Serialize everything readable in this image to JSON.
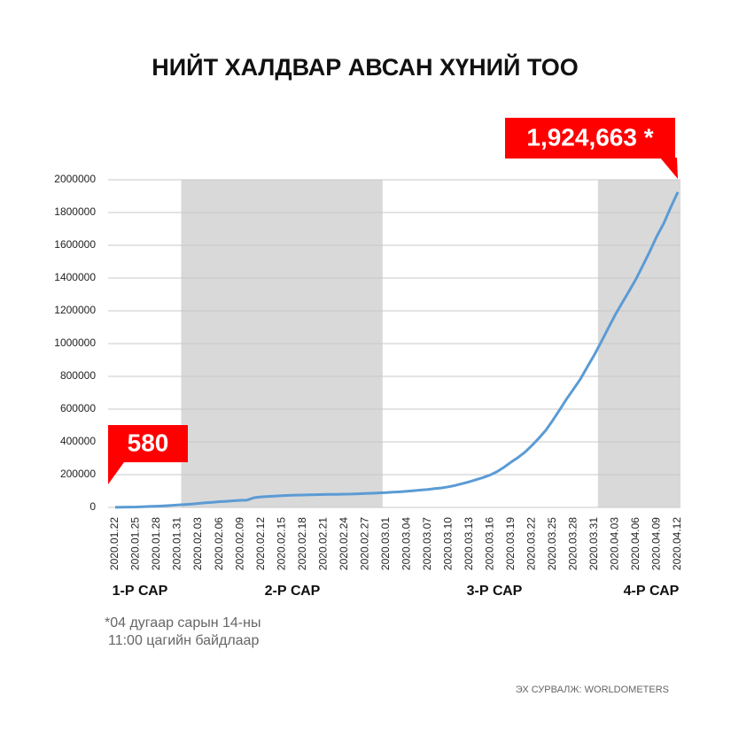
{
  "chart_data": {
    "type": "line",
    "title": "НИЙТ ХАЛДВАР АВСАН ХҮНИЙ ТОО",
    "categories": [
      "2020.01.22",
      null,
      null,
      "2020.01.25",
      null,
      null,
      "2020.01.28",
      null,
      null,
      "2020.01.31",
      null,
      null,
      "2020.02.03",
      null,
      null,
      "2020.02.06",
      null,
      null,
      "2020.02.09",
      null,
      null,
      "2020.02.12",
      null,
      null,
      "2020.02.15",
      null,
      null,
      "2020.02.18",
      null,
      null,
      "2020.02.21",
      null,
      null,
      "2020.02.24",
      null,
      null,
      "2020.02.27",
      null,
      null,
      "2020.03.01",
      null,
      null,
      "2020.03.04",
      null,
      null,
      "2020.03.07",
      null,
      null,
      "2020.03.10",
      null,
      null,
      "2020.03.13",
      null,
      null,
      "2020.03.16",
      null,
      null,
      "2020.03.19",
      null,
      null,
      "2020.03.22",
      null,
      null,
      "2020.03.25",
      null,
      null,
      "2020.03.28",
      null,
      null,
      "2020.03.31",
      null,
      null,
      "2020.04.03",
      null,
      null,
      "2020.04.06",
      null,
      null,
      "2020.04.09",
      null,
      null,
      "2020.04.12"
    ],
    "values": [
      580,
      1317,
      2015,
      2800,
      4581,
      6058,
      7813,
      9823,
      11950,
      14553,
      17391,
      20630,
      24545,
      28266,
      31439,
      34876,
      37552,
      40553,
      43099,
      45134,
      59287,
      64438,
      67100,
      69197,
      71329,
      73332,
      75184,
      75700,
      76677,
      77673,
      78651,
      79205,
      80087,
      80828,
      81820,
      83112,
      84615,
      86604,
      88585,
      90443,
      93016,
      95314,
      98425,
      102050,
      106099,
      109991,
      114381,
      118948,
      126214,
      134576,
      145483,
      156653,
      169593,
      182490,
      198238,
      218822,
      246088,
      277000,
      304979,
      337489,
      378830,
      422574,
      471035,
      531865,
      596366,
      663127,
      723390,
      784794,
      859798,
      932605,
      1013157,
      1095917,
      1176060,
      1249754,
      1321481,
      1396476,
      1480202,
      1565278,
      1657526,
      1735650,
      1834721,
      1924663
    ],
    "color": "#5b9bd5",
    "ylim": [
      0,
      2000000
    ],
    "yticks": [
      0,
      200000,
      400000,
      600000,
      800000,
      1000000,
      1200000,
      1400000,
      1600000,
      1800000,
      2000000
    ],
    "grid": true,
    "periods": [
      "1-Р САР",
      "2-Р САР",
      "3-Р САР",
      "4-Р САР"
    ],
    "annotations": [
      "580",
      "1,924,663 *"
    ],
    "notes": [
      "*04 дугаар сарын 14-ны",
      "11:00 цагийн байдлаар"
    ],
    "source": "ЭХ СУРВАЛЖ: WORLDOMETERS"
  }
}
